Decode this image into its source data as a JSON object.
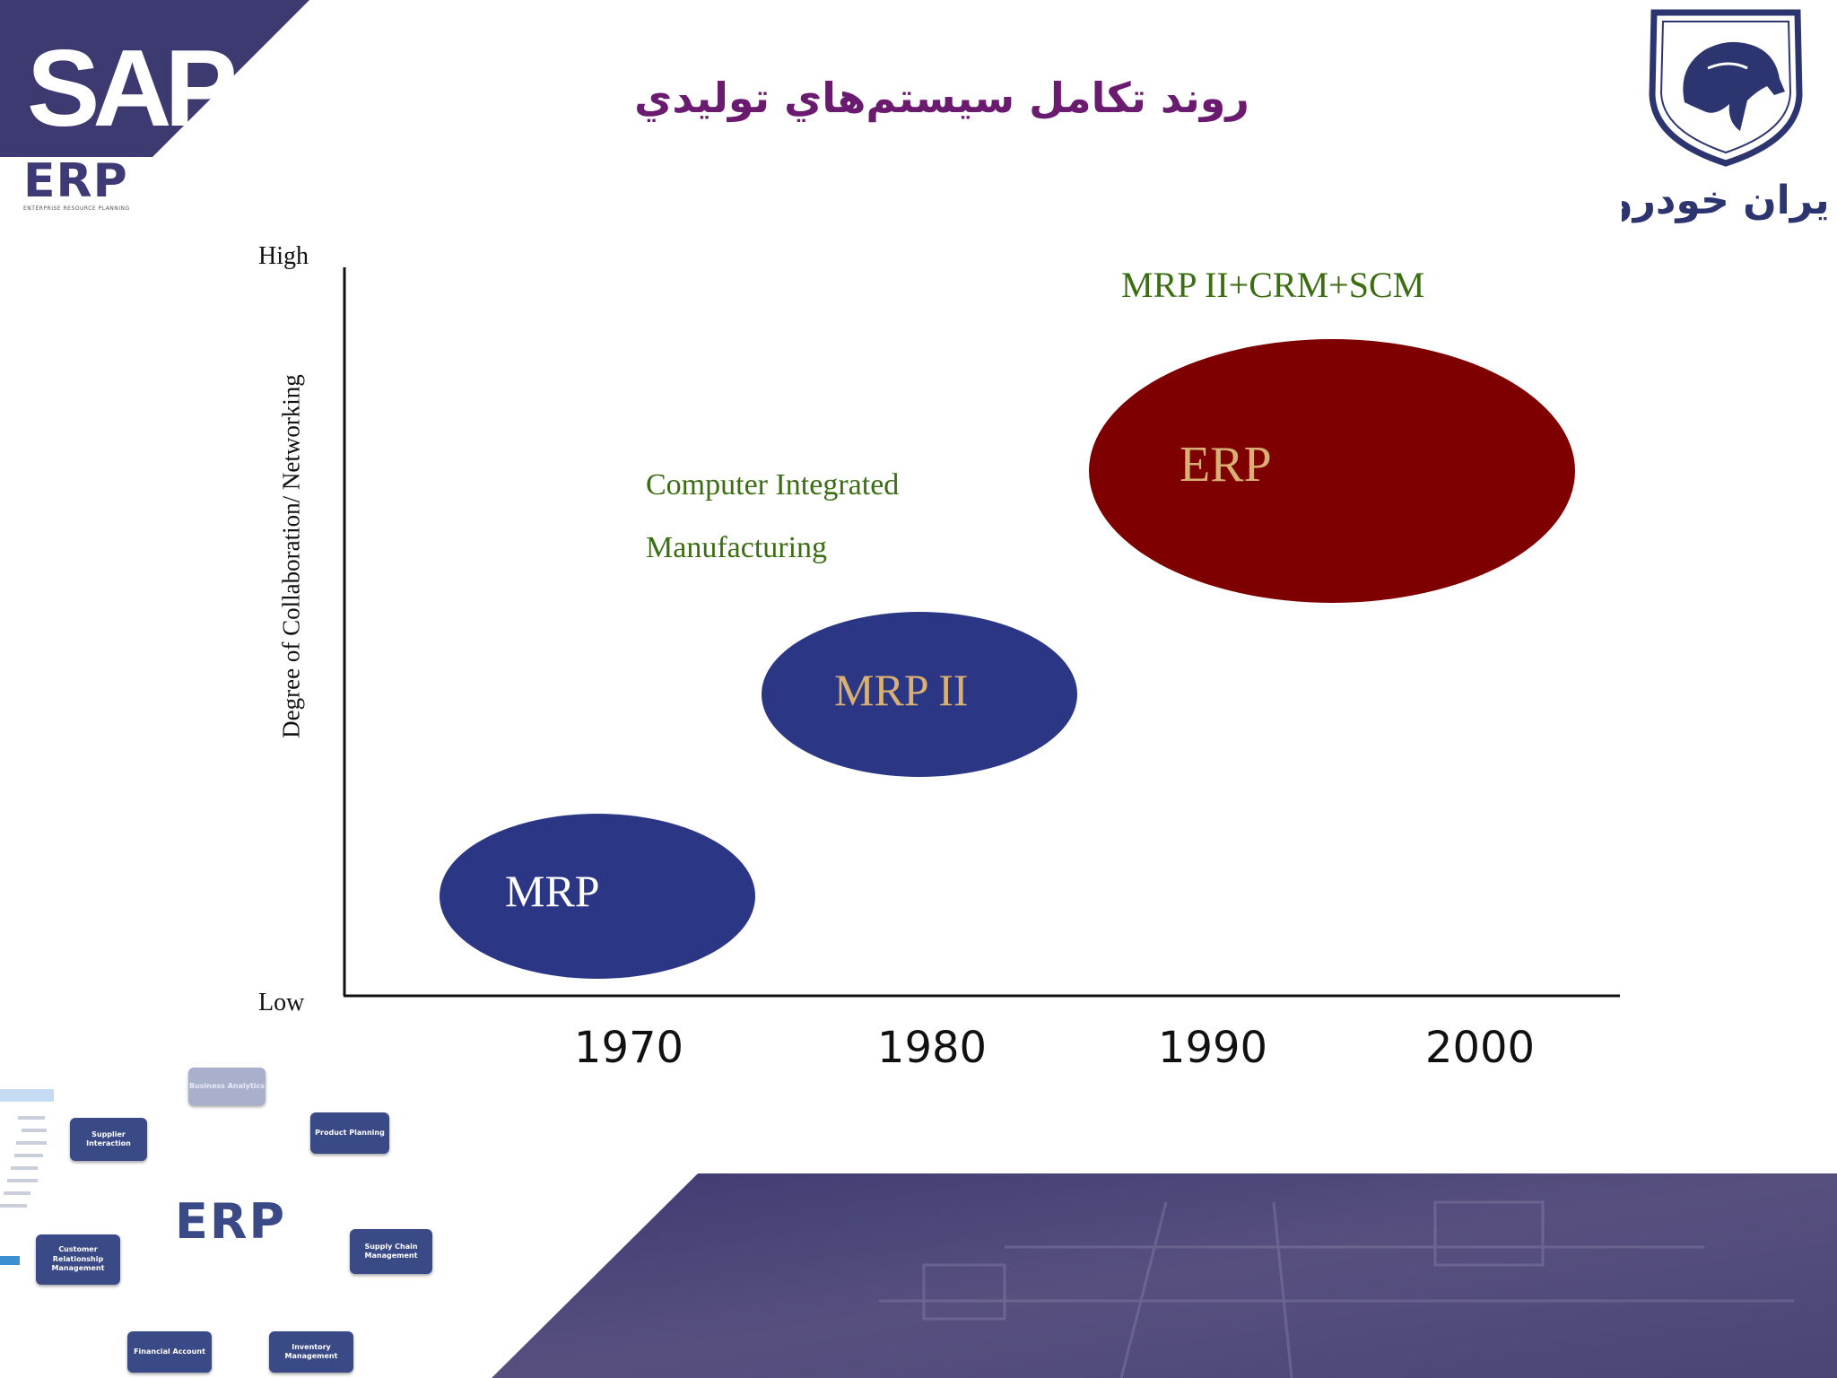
{
  "header": {
    "title": "روند تكامل سيستم‌هاي توليدي",
    "sap_logo_text": "SAP",
    "erp_logo_text": "ERP",
    "erp_logo_subtext": "ENTERPRISE RESOURCE PLANNING",
    "company_logo_text": "ايران خودرو"
  },
  "diagram": {
    "y_axis_title": "Degree of Collaboration/ Networking",
    "y_high_label": "High",
    "y_low_label": "Low",
    "x_ticks": [
      "1970",
      "1980",
      "1990",
      "2000"
    ],
    "stages": [
      {
        "label": "MRP",
        "color": "#2b3784",
        "text_color": "#ffffff"
      },
      {
        "label": "MRP II",
        "color": "#2b3784",
        "text_color": "#d9b074"
      },
      {
        "label": "ERP",
        "color": "#7f0000",
        "text_color": "#d9b074"
      }
    ],
    "annotations": {
      "cim_line1": "Computer Integrated",
      "cim_line2": "Manufacturing",
      "erp_components": "MRP II+CRM+SCM"
    }
  },
  "footer_diagram": {
    "center_label": "ERP",
    "modules": [
      "Business Analytics",
      "Supplier Interaction",
      "Product Planning",
      "Customer Relationship Management",
      "Supply Chain Management",
      "Financial Account",
      "Inventory Management"
    ]
  },
  "colors": {
    "brand_dark": "#3d3a72",
    "title_purple": "#6a1b6f",
    "annotation_green": "#3b6e12",
    "ellipse_blue": "#2b3784",
    "ellipse_red": "#7f0000"
  }
}
